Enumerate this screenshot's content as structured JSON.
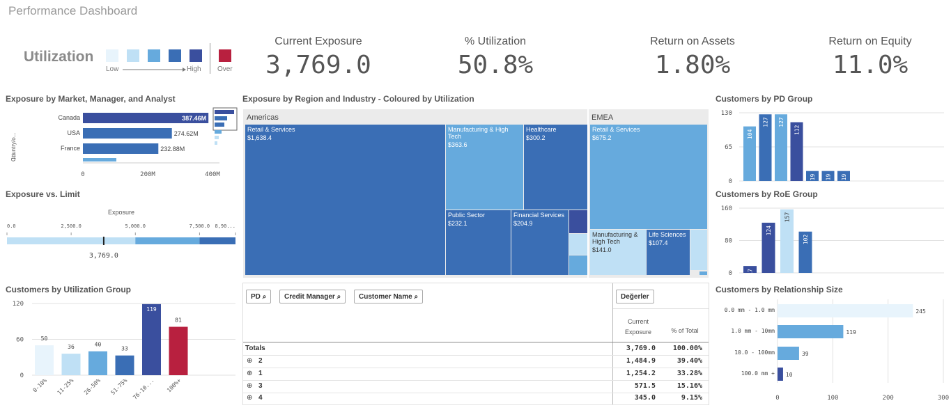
{
  "app": {
    "title": "Performance Dashboard"
  },
  "legend": {
    "title": "Utilization",
    "low": "Low",
    "high": "High",
    "over": "Over",
    "swatches": [
      "#e8f4fc",
      "#bfe0f5",
      "#66aadd",
      "#3a6eb5",
      "#3a4f9e"
    ],
    "over_color": "#b8203f"
  },
  "kpis": [
    {
      "title": "Current Exposure",
      "value": "3,769.0"
    },
    {
      "title": "% Utilization",
      "value": "50.8%"
    },
    {
      "title": "Return on Assets",
      "value": "1.80%"
    },
    {
      "title": "Return on Equity",
      "value": "11.0%"
    }
  ],
  "panels": {
    "market": "Exposure by Market, Manager, and Analyst",
    "limit": "Exposure vs. Limit",
    "util_group": "Customers by Utilization Group",
    "treemap": "Exposure by Region and Industry - Coloured by Utilization",
    "pd": "Customers by PD Group",
    "roe": "Customers by RoE Group",
    "rel": "Customers by Relationship Size"
  },
  "table": {
    "filters": [
      "PD",
      "Credit Manager",
      "Customer Name"
    ],
    "values_button": "Değerler",
    "col_exposure_1": "Current",
    "col_exposure_2": "Exposure",
    "col_pct": "% of Total",
    "totals": {
      "label": "Totals",
      "exposure": "3,769.0",
      "pct": "100.00%"
    },
    "rows": [
      {
        "pd": "2",
        "exposure": "1,484.9",
        "pct": "39.40%"
      },
      {
        "pd": "1",
        "exposure": "1,254.2",
        "pct": "33.28%"
      },
      {
        "pd": "3",
        "exposure": "571.5",
        "pct": "15.16%"
      },
      {
        "pd": "4",
        "exposure": "345.0",
        "pct": "9.15%"
      }
    ]
  },
  "chart_data": [
    {
      "id": "market",
      "type": "bar",
      "orientation": "horizontal",
      "ylabel": "Country/o...",
      "categories": [
        "Canada",
        "USA",
        "France"
      ],
      "value_labels": [
        "387.46M",
        "274.62M",
        "232.88M"
      ],
      "values": [
        387.46,
        274.62,
        232.88
      ],
      "xticks": [
        "0",
        "200M",
        "400M"
      ],
      "xlim": [
        0,
        400
      ]
    },
    {
      "id": "limit",
      "type": "bar",
      "title": "Exposure",
      "ticks": [
        "0.0",
        "2,500.0",
        "5,000.0",
        "7,500.0",
        "8,90..."
      ],
      "xlim": [
        0,
        8900
      ],
      "value": 3769.0,
      "value_label": "3,769.0"
    },
    {
      "id": "util_group",
      "type": "bar",
      "categories": [
        "0-10%",
        "11-25%",
        "26-50%",
        "51-75%",
        "76-10...",
        "100%+"
      ],
      "values": [
        50,
        36,
        40,
        33,
        119,
        81
      ],
      "colors": [
        "#e8f4fc",
        "#bfe0f5",
        "#66aadd",
        "#3a6eb5",
        "#3a4f9e",
        "#b8203f"
      ],
      "yticks": [
        "0",
        "60",
        "120"
      ],
      "ylim": [
        0,
        120
      ]
    },
    {
      "id": "treemap",
      "type": "treemap",
      "regions": [
        {
          "name": "Americas",
          "items": [
            {
              "name": "Retail & Services",
              "value": "$1,638.4"
            },
            {
              "name": "Manufacturing & High Tech",
              "value": "$363.6"
            },
            {
              "name": "Healthcare",
              "value": "$300.2"
            },
            {
              "name": "Public Sector",
              "value": "$232.1"
            },
            {
              "name": "Financial Services",
              "value": "$204.9"
            }
          ]
        },
        {
          "name": "EMEA",
          "items": [
            {
              "name": "Retail & Services",
              "value": "$675.2"
            },
            {
              "name": "Manufacturing & High Tech",
              "value": "$141.0"
            },
            {
              "name": "Life Sciences",
              "value": "$107.4"
            }
          ]
        }
      ]
    },
    {
      "id": "pd",
      "type": "bar",
      "values": [
        104,
        127,
        127,
        112,
        19,
        19,
        19
      ],
      "colors": [
        "#66aadd",
        "#3a6eb5",
        "#66aadd",
        "#3a4f9e",
        "#3a6eb5",
        "#3a6eb5",
        "#3a6eb5"
      ],
      "yticks": [
        "0",
        "65",
        "130"
      ],
      "ylim": [
        0,
        130
      ]
    },
    {
      "id": "roe",
      "type": "bar",
      "values": [
        17,
        124,
        157,
        102
      ],
      "colors": [
        "#3a4f9e",
        "#3a4f9e",
        "#bfe0f5",
        "#3a6eb5"
      ],
      "yticks": [
        "0",
        "80",
        "160"
      ],
      "ylim": [
        0,
        160
      ]
    },
    {
      "id": "rel",
      "type": "bar",
      "orientation": "horizontal",
      "categories": [
        "0.0 mm - 1.0 mm",
        "1.0 mm - 10mm",
        "10.0 - 100mm",
        "100.0 mm +"
      ],
      "values": [
        245,
        119,
        39,
        10
      ],
      "colors": [
        "#e8f4fc",
        "#66aadd",
        "#66aadd",
        "#3a4f9e"
      ],
      "xticks": [
        "0",
        "100",
        "200",
        "300"
      ],
      "xlim": [
        0,
        300
      ]
    }
  ]
}
